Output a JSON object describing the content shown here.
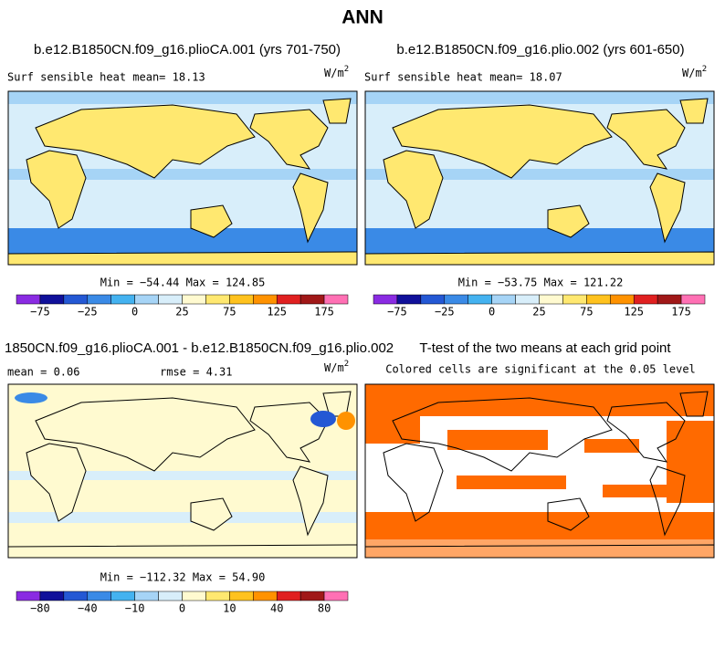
{
  "title": "ANN",
  "panels": [
    {
      "title": "b.e12.B1850CN.f09_g16.plioCA.001 (yrs 701-750)",
      "left_label": "Surf sensible heat  mean=  18.13",
      "units": "W/m",
      "units_exp": "2",
      "stats": "Min = −54.44 Max = 124.85",
      "colorbar": {
        "colors": [
          "#8a2be2",
          "#10109a",
          "#2458d4",
          "#3a8ae6",
          "#44b2f0",
          "#a6d4f6",
          "#d8eefa",
          "#fffad0",
          "#ffe870",
          "#ffc21e",
          "#ff9200",
          "#e02020",
          "#a01818",
          "#ff70b4"
        ],
        "labels": [
          "−75",
          "−25",
          "0",
          "25",
          "75",
          "125",
          "175"
        ]
      }
    },
    {
      "title": "b.e12.B1850CN.f09_g16.plio.002 (yrs 601-650)",
      "left_label": "Surf sensible heat  mean=  18.07",
      "units": "W/m",
      "units_exp": "2",
      "stats": "Min = −53.75 Max = 121.22",
      "colorbar": {
        "colors": [
          "#8a2be2",
          "#10109a",
          "#2458d4",
          "#3a8ae6",
          "#44b2f0",
          "#a6d4f6",
          "#d8eefa",
          "#fffad0",
          "#ffe870",
          "#ffc21e",
          "#ff9200",
          "#e02020",
          "#a01818",
          "#ff70b4"
        ],
        "labels": [
          "−75",
          "−25",
          "0",
          "25",
          "75",
          "125",
          "175"
        ]
      }
    },
    {
      "title": "1850CN.f09_g16.plioCA.001 - b.e12.B1850CN.f09_g16.plio.002",
      "mean_label": "mean =   0.06",
      "rmse_label": "rmse =   4.31",
      "units": "W/m",
      "units_exp": "2",
      "stats": "Min = −112.32 Max = 54.90",
      "colorbar": {
        "colors": [
          "#8a2be2",
          "#10109a",
          "#2458d4",
          "#3a8ae6",
          "#44b2f0",
          "#a6d4f6",
          "#d8eefa",
          "#fffad0",
          "#ffe870",
          "#ffc21e",
          "#ff9200",
          "#e02020",
          "#a01818",
          "#ff70b4"
        ],
        "labels": [
          "−80",
          "−40",
          "−10",
          "0",
          "10",
          "40",
          "80"
        ]
      }
    },
    {
      "title": "T-test of the two means at each grid point",
      "subtitle": "Colored cells are significant at the 0.05 level"
    }
  ]
}
